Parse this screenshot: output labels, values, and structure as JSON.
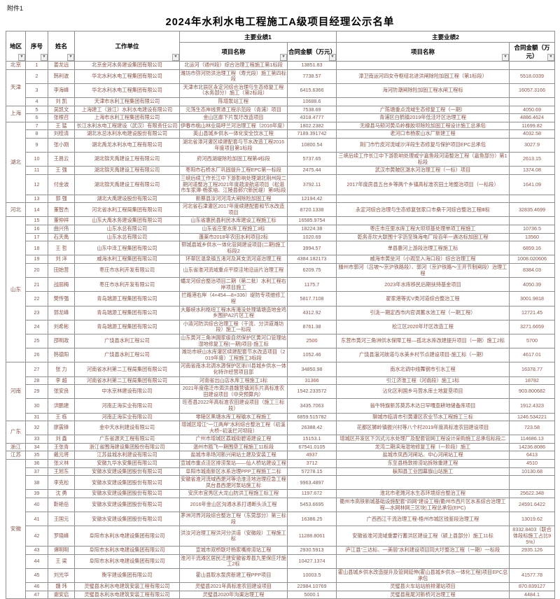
{
  "page": {
    "attachment": "附件1",
    "title": "2024年水利水电工程施工A级项目经理公示名单"
  },
  "table": {
    "filter_icon": "▾",
    "colors": {
      "data_text": "#8a554b",
      "header_text": "#000000",
      "border": "#8f8f8f"
    },
    "headers": {
      "region": "地区",
      "index": "序号",
      "name": "姓名",
      "employer": "工作单位",
      "achievement1": "主要业绩1",
      "achievement2": "主要业绩2",
      "project": "项目名称",
      "amount": "合同金额（万元）"
    },
    "regions": [
      {
        "name": "北京",
        "rows": [
          [
            1,
            "姜龙远",
            "北京金河水务建设集团有限公司",
            "北运河（通州段）综合治理工程施工第1标段",
            "13851.83",
            "",
            ""
          ]
        ]
      },
      {
        "name": "天津",
        "rows": [
          [
            2,
            "韩利波",
            "华北水利水电工程集团有限公司",
            "潍坊市弥河防洪治理工程（寿光段）施工第四标段",
            "7738.57",
            "漳卫南运河四女寺枢纽北进洪闸除险加固工程（第1标段）",
            "5518.0339"
          ],
          [
            3,
            "李海峰",
            "华北水利水电工程集团有限公司",
            "天津市北辰区永定河综合治理与生态修复工程（水务部分）施工（第2标段）",
            "6415.6366",
            "海河防潮闸除险加固工程水闸工程标",
            "16057.3166"
          ],
          [
            4,
            "刘 凯",
            "天津市水利工程集团有限公司",
            "陈增泵站工程",
            "10688.6",
            "",
            ""
          ]
        ]
      },
      {
        "name": "上海",
        "rows": [
          [
            5,
            "吴凯文",
            "上海建工（浙江）水利水电建设有限公司",
            "元荡生态岸线贯通工程示范段（青浦）项目",
            "7538.69",
            "广陈塘重点流域生态修复工程（一期）",
            "4050.69"
          ],
          [
            6,
            "张根召",
            "上海市水利工程集团有限公司",
            "金山区廊下片泵圩改造项目",
            "4318.4777",
            "青浦区白鹤镇2019年低洼圩区治理工程",
            "4886.4624"
          ]
        ]
      },
      {
        "name": "湖北",
        "rows": [
          [
            7,
            "王 猛",
            "长江水利水电工程建设（武汉）有限责任公司",
            "伊春市桃山林业局呼兰河治理工程（2016年度）",
            "1802.2382",
            "无棣县马颊河黄瓜岭橡胶坝除险加固工程设计施工总承包",
            "11699.82"
          ],
          [
            8,
            "刘桂清",
            "湖北水总水利水电建设股份有限公司",
            "英山县城乡供水一体化安全饮水工程",
            "7189.391742",
            "老河口市杨家山水厂新建工程",
            "4032.58"
          ],
          [
            9,
            "张小刚",
            "湖北禹龙水利水电工程有限公司",
            "湖北省漳河灌区续建配套与节水改造工程2016年度项目第1标段",
            "10800.54",
            "荆门市竹皮河流域沙洋段生态修复与保护项目EPC总承包",
            "3027.9"
          ],
          [
            10,
            "王昌云",
            "湖北锦天禹建设工程有限公司",
            "府河西湖堤除险加固工程第4标段",
            "5737.65",
            "三峡后续工作长江中下游影响处理咸宁嘉鱼段河道整治工程（嘉鱼部分）第1标段",
            "2613.15"
          ],
          [
            11,
            "王 强",
            "湖北锦天禹建设工程有限公司",
            "枣阳市石桥水厂巩固提升工程EPC第一标段",
            "2475.44",
            "武汉市黄陂区滠水河治理工程（一标）项目",
            "1374.08"
          ],
          [
            12,
            "付金波",
            "湖北锦天禹建设工程有限公司",
            "三峡后续工作长江中下游影响处理湖北荆州段二期河道整治工程2021年度疏浚航道项目（松滋市车家潭-杨家垴、江陵县郝穴新民堤）第8标段",
            "3792.11",
            "2017年度房县五台乡等两个乡镇高标准农田土地整治项目（一标段）",
            "1641.09"
          ],
          [
            13,
            "郭 强",
            "湖北大禹建设股份有限公司",
            "新蔡县汝河河湾大闸除险加固工程",
            "12194.42",
            "",
            ""
          ]
        ]
      },
      {
        "name": "河北",
        "rows": [
          [
            14,
            "董智杰",
            "河北省水利工程局集团有限公司",
            "河北省石津灌区2017年度续建配套和节水改造项目",
            "8720.1338",
            "永定河综合治理与生态修复张家口市桑干河综合整治工程Ⅲ标",
            "32835.4699"
          ]
        ]
      },
      {
        "name": "山东",
        "rows": [
          [
            15,
            "董仲祥",
            "山东大禹水务建设集团有限公司",
            "山东省惠民县利民水库建设工程施工标",
            "16585.9754",
            "",
            ""
          ],
          [
            16,
            "曲兴伟",
            "山东水总有限公司",
            "山东省庄里水库工程施工3标",
            "18224.38",
            "枣庄市庄里水库工程大坝坝基处理单项工程施工",
            "10736.5"
          ],
          [
            17,
            "石天禹",
            "山东水总有限公司",
            "蓬莱市2018年农田水利项目2标",
            "1020.69",
            "乾务赤坎大联围十字沥至珠海电厂段百年一遇达标加固工程",
            "13560"
          ],
          [
            18,
            "王 哲",
            "山东中泽工程集团有限公司",
            "郓城县城乡供水一体化管网建设项目(二期)施工标段2",
            "3994.57",
            "单县惠河上游段治理工程施工标",
            "6859.16"
          ],
          [
            19,
            "刘 洋",
            "威海水利工程集团有限公司",
            "环翠区温泉镇五渚河及其支流河道治理工程",
            "4384.182173",
            "威海市黄垒河（小观至入海口段）综合治理工程",
            "1008.020606"
          ],
          [
            20,
            "田始营",
            "枣庄市水利开发有限公司",
            "山东省淮河流域重点平原洼地沿运片治理工程",
            "6209.75",
            "滕州市郭河（吕坡～京沪铁路段）、郭河（京沪铁路～王开节制闸段）治理工程",
            "8384.03"
          ],
          [
            21,
            "战丽梅",
            "枣庄市水利开发有限公司",
            "蟠龙河综合整治项目二期（第二批）水利工程右岸项目施工",
            "1175.7",
            "2023年水库移民后期扶持基金项目",
            "4050.39"
          ],
          [
            22,
            "樊传强",
            "青岛瑞源工程集团有限公司",
            "拦路港右岸（4+454—8+336）堤防专项维修工程",
            "5817.7108",
            "翟家港等劣V类河道综合整治工程",
            "3001.9818"
          ],
          [
            23,
            "郭龙峰",
            "青岛瑞源工程集团有限公司",
            "大藤峡水利枢纽工程水库淹没处理填塘造地金鸡乡围护A2片区工程",
            "4312.92",
            "引洮一期定西市内官调蓄水池工程（一期工程）",
            "12721.45"
          ],
          [
            24,
            "刘希彬",
            "青岛瑞源工程集团有限公司",
            "小清河防洪综合治理工程（干流、分洪道潍坊段）施工一标段",
            "8761.38",
            "松江区2020年圩区改造工程",
            "3271.6659"
          ],
          [
            25,
            "邵明政",
            "广饶县水利工程公司",
            "山东黄河三角洲国家级自然保护区黄河口管理站湿地修复工程(一期)项目-施工标",
            "2500",
            "东营市黄河三角洲供水保障工程—孤北水库改建提升项目（一期）施工2标",
            "5700"
          ],
          [
            26,
            "韩德阳",
            "广饶县水利工程公司",
            "潍坊市峡山水库灌区续建配套节水改造项目（2019年度）工程施工3标段",
            "1052.46",
            "广饶县淄河故道与水美乡村节点建设项目-施工标（一期）",
            "4617.01"
          ]
        ]
      },
      {
        "name": "河南",
        "rows": [
          [
            27,
            "张 力",
            "河南省水利第二工程局集团有限公司",
            "河南省南水北调水源保护区淅川县城乡供水一体化特许经营项目部",
            "34850.98",
            "南水北调中线舞钢市引水工程",
            "16378.77"
          ],
          [
            28,
            "李 超",
            "河南省水利第二工程局集团有限公司",
            "河南省出山店水库工程施工1标",
            "31366",
            "引江济淮工程（河南段）施工1标",
            "18782"
          ],
          [
            29,
            "张安良",
            "中水京林建设有限公司",
            "2021年度宿迁市泗洪县魏营镇涧东片高标准农田建设项目（中央预算内）",
            "1542.233572",
            "沾化区利国乡马营水库土地复垦项目",
            "903.800682"
          ],
          [
            30,
            "洪鹏建",
            "河南正海实业有限公司",
            "旺苍县2022年高标准农田建设项目（施工三标段）",
            "3435.7063",
            "翁牛特旗新苏莫苏木达日罕嘎查耕地储备库项目",
            "1912.4323"
          ],
          [
            31,
            "王 栋",
            "河南正海实业有限公司",
            "零陵区黑塘水库工程输水工程施工",
            "6859.515782",
            "聊城市临清市引黄灌区农业节水工程施工三标",
            "1246.534221"
          ]
        ]
      },
      {
        "name": "广东",
        "rows": [
          [
            32,
            "廖震锋",
            "金中天水利建设有限公司",
            "增城区增江“一江两岸”水利综合整治工程（初溪大桥~初溪拦河坝段）",
            "26388.42",
            "花都区狮岭镇振兴村等八个村2019年度高标准农田建设项目",
            "723.58"
          ],
          [
            33,
            "刘 鑫",
            "广东省源天工程有限公司",
            "广州市增城区荔城街碧道建设工程",
            "15153.1",
            "增城区开发区下沉式污水处理厂及配套管网工程设计采购施工总承包标段二",
            "114686.13"
          ]
        ]
      },
      {
        "name": "浙江",
        "rows": [
          [
            34,
            "王张青",
            "浙江省围海建设集团股份有限公司",
            "温州市瓯飞一期围垦工程施工11标段",
            "67541.0105",
            "龙湾二期滨海湿地修复工程（一阶段）施工",
            "14236.8086"
          ]
        ]
      },
      {
        "name": "江苏",
        "rows": [
          [
            35,
            "戴元将",
            "江苏盐城水利建设有限公司",
            "盐城市串场河新兴闸站土建及安装工程",
            "4937",
            "盐城市凤西河闸站、中心河闸站工程",
            "6413"
          ]
        ]
      },
      {
        "name": "安徽",
        "rows": [
          [
            36,
            "张义林",
            "安徽九华水安集团有限公司",
            "宣城市重点洼区排涝泵站——仙人桥站建设工程",
            "3712",
            "东至县杨敦排涝站拆除重建工程",
            "4510"
          ],
          [
            37,
            "王旭东",
            "安徽水安建设集团股份有限公司",
            "阜阳市城南新区水系治理PPP工程施工二标",
            "57278.15",
            "枞阳县工业园幕旗山站施工",
            "10130.68"
          ],
          [
            38,
            "李克松",
            "安徽水安建设集团股份有限公司",
            "安徽省淮河流域西淝河等沿淮洼地治理应急工程凤台县西淝河泵站施工标",
            "9963.4897",
            "",
            ""
          ],
          [
            39,
            "沈 勇",
            "安徽水安建设集团股份有限公司",
            "安庆市宜秀区大龙山防洪工程施工标工程",
            "1197.672",
            "淮北市老濉河水生态环境综合整治工程",
            "25622.348"
          ],
          [
            40,
            "靳艳岳",
            "安徽水安建设集团股份有限公司",
            "2016年金山区沟通水系打通断头浜工程",
            "5453.6695",
            "衢州市高铁新城基础设施配套“四网”建设工程(衢州市西片区水系综合治理工程—水网林网三区块)工程总承包(EPC)",
            "24591.6422"
          ],
          [
            41,
            "王国元",
            "安徽水安建设集团股份有限公司",
            "茅洲河界河段综合整治工程（东莞部分）第三标段",
            "16386.25",
            "广西西江干流治理工程-梧州市城区钱鉴段治理工程",
            "13019.62"
          ],
          [
            42,
            "罗晓峰",
            "阜阳市水利水电建设集团有限公司",
            "洪汝河治理工程洪河分洪道（安徽段）工程施工标",
            "11288.8061",
            "安徽省淮河流域重要行蓄洪区建设工程（颍上县部分）施工11标",
            "8332.8403（联合体段标施工占比95%）"
          ],
          [
            43,
            "谭明明",
            "阜阳市水利水电建设集团有限公司",
            "宣城市双桥联圩杨家嘴排涝站工程",
            "2930.5913",
            "庐江县“三达标、一美丽”水利建设项目同大圩整治工程（一期）一标段",
            "2935.126"
          ],
          [
            44,
            "王 梁",
            "阜阳市水利水电建设集团有限公司",
            "淮河干流滩区居民迁建安徽省寿县九里保庄圩施工2标",
            "10427.1374",
            "",
            ""
          ],
          [
            45,
            "刘光华",
            "衡宇建设集团有限公司",
            "霍山县取水泵房新建工程PPP项目",
            "10003.5",
            "霍山县城乡供水改造提升及管网延伸(霍山县城乡供水一体化工程)项目EPC总承包",
            "41577.78"
          ],
          [
            46,
            "魏 玮",
            "灵璧县水利水电建筑安装工程有限公司",
            "灵璧县2021年高标准农田建设项目",
            "22984.10769",
            "灵璧县火车站站前排灌站项目",
            "870.839127"
          ],
          [
            47,
            "谢安启",
            "灵璧县水利水电建筑安装工程有限公司",
            "灵璧县2020年沟渠治理工程",
            "5000.1",
            "灵璧县拖尾河新桥河治理工程",
            "4484.1"
          ]
        ]
      }
    ]
  }
}
